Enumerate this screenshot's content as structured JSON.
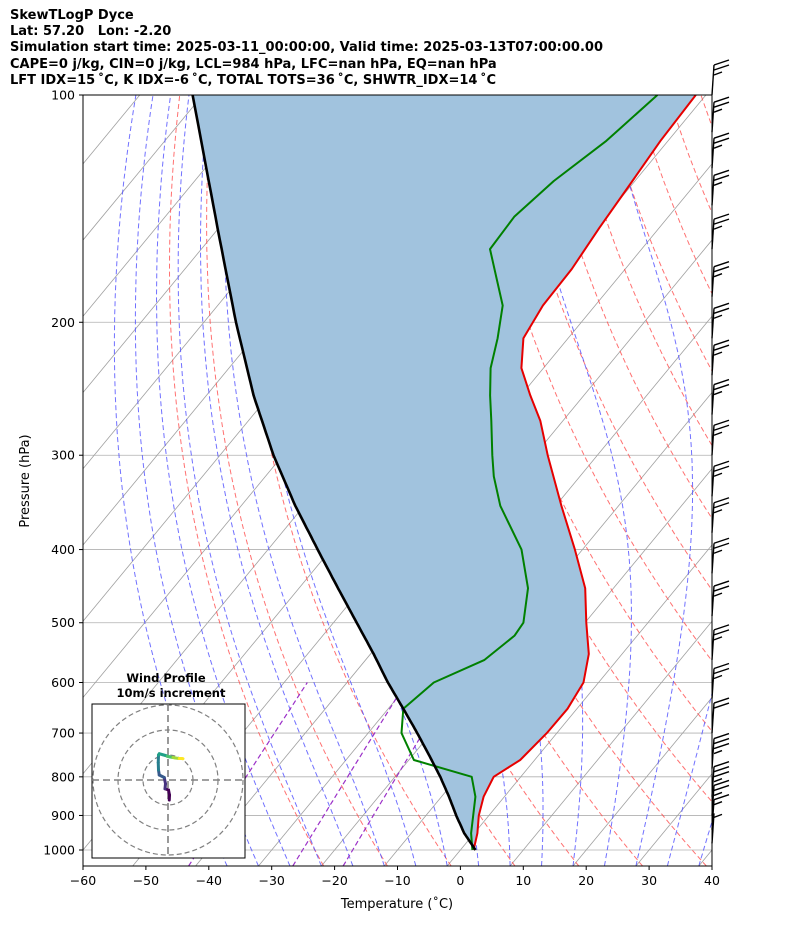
{
  "header": {
    "line1": "SkewTLogP Dyce",
    "line2": "Lat: 57.20   Lon: -2.20",
    "line3": "Simulation start time: 2025-03-11_00:00:00, Valid time: 2025-03-13T07:00:00.00",
    "line4": "CAPE=0 j/kg, CIN=0 j/kg, LCL=984 hPa, LFC=nan hPa, EQ=nan hPa",
    "line5": "LFT IDX=15 ˚C, K IDX=-6 ˚C, TOTAL TOTS=36 ˚C, SHWTR_IDX=14 ˚C"
  },
  "chart_data": {
    "type": "line",
    "title": "SkewTLogP Dyce",
    "xlabel": "Temperature (˚C)",
    "ylabel": "Pressure (hPa)",
    "xlim": [
      -60,
      40
    ],
    "ylim": [
      1050,
      100
    ],
    "yscale": "log",
    "skew": true,
    "grid": true,
    "x_ticks": [
      "−60",
      "−50",
      "−40",
      "−30",
      "−20",
      "−10",
      "0",
      "10",
      "20",
      "30",
      "40"
    ],
    "y_ticks": [
      "100",
      "200",
      "300",
      "400",
      "500",
      "600",
      "700",
      "800",
      "900",
      "1000"
    ],
    "colors": {
      "temperature": "#e60000",
      "dewpoint": "#008000",
      "parcel": "#000000",
      "cape_fill": "#a1c3de",
      "dry_adiabat": "#ff4d4d",
      "moist_adiabat": "#4d4dff",
      "mixing_ratio": "#9b30c8",
      "isotherm": "#a0a0a0"
    },
    "series": [
      {
        "key": "temperature",
        "points": [
          [
            1000,
            2.1
          ],
          [
            950,
            0.5
          ],
          [
            900,
            -1.6
          ],
          [
            850,
            -3.3
          ],
          [
            800,
            -4.3
          ],
          [
            760,
            -2.3
          ],
          [
            700,
            -1.6
          ],
          [
            650,
            -1.5
          ],
          [
            600,
            -2.4
          ],
          [
            550,
            -5.3
          ],
          [
            500,
            -9.8
          ],
          [
            450,
            -14.5
          ],
          [
            400,
            -21.2
          ],
          [
            350,
            -29.1
          ],
          [
            300,
            -37.9
          ],
          [
            270,
            -43.6
          ],
          [
            250,
            -48.5
          ],
          [
            230,
            -53.5
          ],
          [
            210,
            -57.1
          ],
          [
            190,
            -58.3
          ],
          [
            170,
            -58.5
          ],
          [
            150,
            -59.5
          ],
          [
            130,
            -60.4
          ],
          [
            115,
            -61.2
          ],
          [
            100,
            -61.6
          ]
        ]
      },
      {
        "key": "dewpoint",
        "points": [
          [
            1000,
            1.9
          ],
          [
            950,
            -0.5
          ],
          [
            900,
            -2.5
          ],
          [
            850,
            -4.6
          ],
          [
            800,
            -7.8
          ],
          [
            760,
            -19.2
          ],
          [
            700,
            -24.7
          ],
          [
            650,
            -27.6
          ],
          [
            600,
            -26.2
          ],
          [
            560,
            -21.1
          ],
          [
            520,
            -19.5
          ],
          [
            500,
            -19.8
          ],
          [
            450,
            -23.6
          ],
          [
            400,
            -29.7
          ],
          [
            350,
            -38.8
          ],
          [
            320,
            -43.7
          ],
          [
            300,
            -46.7
          ],
          [
            270,
            -51.4
          ],
          [
            250,
            -54.9
          ],
          [
            230,
            -58.4
          ],
          [
            210,
            -61.2
          ],
          [
            190,
            -64.7
          ],
          [
            175,
            -69.2
          ],
          [
            160,
            -74.1
          ],
          [
            145,
            -74.5
          ],
          [
            130,
            -72.9
          ],
          [
            115,
            -69.8
          ],
          [
            100,
            -67.7
          ]
        ]
      },
      {
        "key": "parcel",
        "points": [
          [
            1000,
            2.4
          ],
          [
            950,
            -1.6
          ],
          [
            900,
            -5.2
          ],
          [
            850,
            -8.8
          ],
          [
            800,
            -12.8
          ],
          [
            750,
            -17.3
          ],
          [
            700,
            -22.2
          ],
          [
            650,
            -27.6
          ],
          [
            600,
            -33.5
          ],
          [
            550,
            -39.5
          ],
          [
            500,
            -46.3
          ],
          [
            450,
            -53.8
          ],
          [
            400,
            -62.1
          ],
          [
            350,
            -71.4
          ],
          [
            300,
            -81.5
          ],
          [
            250,
            -92.5
          ],
          [
            200,
            -104.9
          ],
          [
            150,
            -120.2
          ],
          [
            100,
            -141.6
          ]
        ]
      }
    ],
    "wind_barbs": [
      {
        "p": 980,
        "speed_kt": 5
      },
      {
        "p": 940,
        "speed_kt": 15
      },
      {
        "p": 900,
        "speed_kt": 25
      },
      {
        "p": 850,
        "speed_kt": 35
      },
      {
        "p": 780,
        "speed_kt": 35
      },
      {
        "p": 700,
        "speed_kt": 20
      },
      {
        "p": 630,
        "speed_kt": 25
      },
      {
        "p": 560,
        "speed_kt": 25
      },
      {
        "p": 490,
        "speed_kt": 25
      },
      {
        "p": 430,
        "speed_kt": 25
      },
      {
        "p": 380,
        "speed_kt": 25
      },
      {
        "p": 340,
        "speed_kt": 25
      },
      {
        "p": 300,
        "speed_kt": 25
      },
      {
        "p": 265,
        "speed_kt": 25
      },
      {
        "p": 235,
        "speed_kt": 25
      },
      {
        "p": 210,
        "speed_kt": 25
      },
      {
        "p": 185,
        "speed_kt": 25
      },
      {
        "p": 160,
        "speed_kt": 25
      },
      {
        "p": 140,
        "speed_kt": 25
      },
      {
        "p": 125,
        "speed_kt": 25
      },
      {
        "p": 112,
        "speed_kt": 25
      },
      {
        "p": 100,
        "speed_kt": 25
      }
    ],
    "hodograph": {
      "title": "Wind Profile",
      "subtitle": "10m/s increment",
      "rings_ms": [
        10,
        20,
        30
      ],
      "points": [
        [
          0.5,
          8
        ],
        [
          0.6,
          6
        ],
        [
          0.2,
          4
        ],
        [
          -1.2,
          3.5
        ],
        [
          -1.0,
          1.5
        ],
        [
          -1.5,
          -1
        ],
        [
          -3.5,
          -2
        ],
        [
          -3.8,
          -4
        ],
        [
          -3.9,
          -7
        ],
        [
          -3.8,
          -10
        ],
        [
          -3.5,
          -10.5
        ],
        [
          -1.0,
          -9.8
        ],
        [
          -0.3,
          -9.5
        ],
        [
          0.5,
          -9.3
        ],
        [
          2.0,
          -9.0
        ],
        [
          3.0,
          -8.8
        ],
        [
          4.5,
          -8.6
        ],
        [
          5.5,
          -8.6
        ],
        [
          6.0,
          -8.5
        ]
      ]
    }
  }
}
